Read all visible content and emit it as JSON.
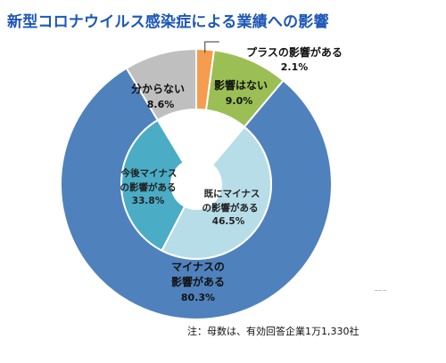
{
  "chart_data": {
    "type": "pie",
    "title": "新型コロナウイルス感染症による業績への影響",
    "outer_ring": [
      {
        "label": "プラスの影響がある",
        "value": 2.1,
        "value_text": "2.1%",
        "color": "#f59c4e"
      },
      {
        "label": "影響はない",
        "value": 9.0,
        "value_text": "9.0%",
        "color": "#9bbf55"
      },
      {
        "label": "マイナスの影響がある",
        "value": 80.3,
        "value_text": "80.3%",
        "color": "#4f81bd"
      },
      {
        "label": "分からない",
        "value": 8.6,
        "value_text": "8.6%",
        "color": "#bfbfbf"
      }
    ],
    "inner_ring": {
      "parent": "マイナスの影響がある",
      "segments": [
        {
          "label": "既にマイナスの影響がある",
          "value": 46.5,
          "value_text": "46.5%",
          "color": "#b7dde8"
        },
        {
          "label": "今後マイナスの影響がある",
          "value": 33.8,
          "value_text": "33.8%",
          "color": "#4bacc6"
        }
      ]
    }
  },
  "footnote": "注：母数は、有効回答企業1万1,330社",
  "watermark": "～～ ～"
}
